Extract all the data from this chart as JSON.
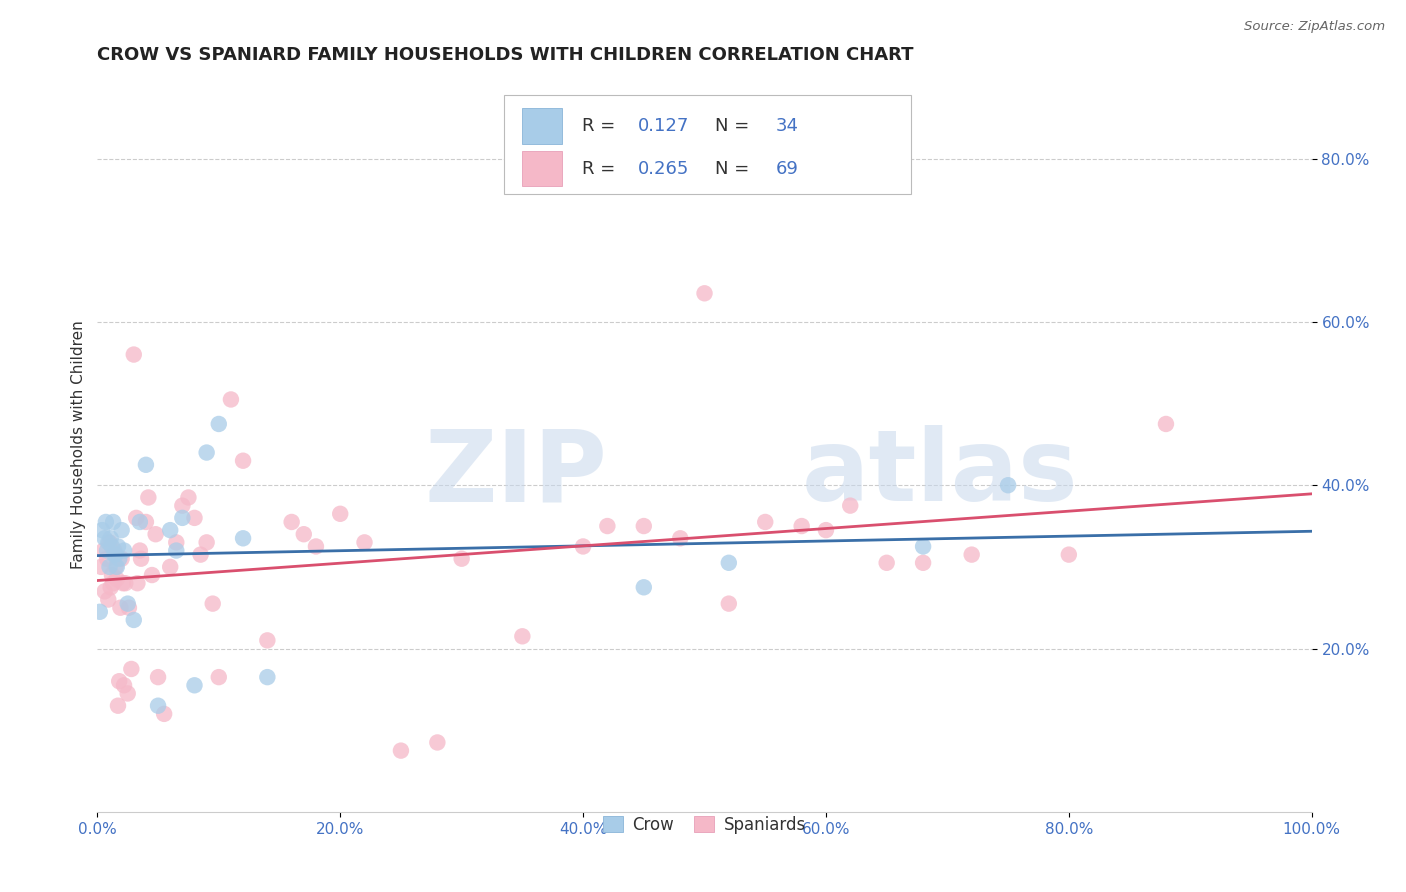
{
  "title": "CROW VS SPANIARD FAMILY HOUSEHOLDS WITH CHILDREN CORRELATION CHART",
  "source": "Source: ZipAtlas.com",
  "ylabel": "Family Households with Children",
  "xlim": [
    0.0,
    1.0
  ],
  "ylim": [
    0.0,
    0.9
  ],
  "xtick_labels": [
    "0.0%",
    "20.0%",
    "40.0%",
    "60.0%",
    "80.0%",
    "100.0%"
  ],
  "xtick_vals": [
    0.0,
    0.2,
    0.4,
    0.6,
    0.8,
    1.0
  ],
  "ytick_labels": [
    "20.0%",
    "40.0%",
    "60.0%",
    "80.0%"
  ],
  "ytick_vals": [
    0.2,
    0.4,
    0.6,
    0.8
  ],
  "crow_R": "0.127",
  "crow_N": "34",
  "spaniard_R": "0.265",
  "spaniard_N": "69",
  "crow_color": "#a8cce8",
  "spaniard_color": "#f5b8c8",
  "crow_line_color": "#3a6fa8",
  "spaniard_line_color": "#d94f6e",
  "crow_x": [
    0.002,
    0.004,
    0.006,
    0.007,
    0.008,
    0.009,
    0.01,
    0.011,
    0.012,
    0.013,
    0.014,
    0.015,
    0.016,
    0.017,
    0.018,
    0.02,
    0.022,
    0.025,
    0.03,
    0.035,
    0.04,
    0.05,
    0.06,
    0.065,
    0.07,
    0.08,
    0.09,
    0.1,
    0.12,
    0.14,
    0.45,
    0.52,
    0.68,
    0.75
  ],
  "crow_y": [
    0.245,
    0.345,
    0.335,
    0.355,
    0.32,
    0.33,
    0.3,
    0.335,
    0.325,
    0.355,
    0.315,
    0.315,
    0.3,
    0.325,
    0.31,
    0.345,
    0.32,
    0.255,
    0.235,
    0.355,
    0.425,
    0.13,
    0.345,
    0.32,
    0.36,
    0.155,
    0.44,
    0.475,
    0.335,
    0.165,
    0.275,
    0.305,
    0.325,
    0.4
  ],
  "spaniard_x": [
    0.003,
    0.005,
    0.006,
    0.008,
    0.009,
    0.01,
    0.011,
    0.012,
    0.013,
    0.014,
    0.015,
    0.016,
    0.017,
    0.018,
    0.019,
    0.02,
    0.021,
    0.022,
    0.023,
    0.025,
    0.026,
    0.028,
    0.03,
    0.032,
    0.033,
    0.035,
    0.036,
    0.04,
    0.042,
    0.045,
    0.048,
    0.05,
    0.055,
    0.06,
    0.065,
    0.07,
    0.075,
    0.08,
    0.085,
    0.09,
    0.095,
    0.1,
    0.11,
    0.12,
    0.14,
    0.16,
    0.17,
    0.18,
    0.2,
    0.22,
    0.25,
    0.28,
    0.3,
    0.35,
    0.4,
    0.42,
    0.45,
    0.48,
    0.5,
    0.52,
    0.55,
    0.58,
    0.6,
    0.62,
    0.65,
    0.68,
    0.72,
    0.8,
    0.88
  ],
  "spaniard_y": [
    0.3,
    0.32,
    0.27,
    0.31,
    0.26,
    0.33,
    0.275,
    0.29,
    0.28,
    0.32,
    0.3,
    0.285,
    0.13,
    0.16,
    0.25,
    0.31,
    0.28,
    0.155,
    0.28,
    0.145,
    0.25,
    0.175,
    0.56,
    0.36,
    0.28,
    0.32,
    0.31,
    0.355,
    0.385,
    0.29,
    0.34,
    0.165,
    0.12,
    0.3,
    0.33,
    0.375,
    0.385,
    0.36,
    0.315,
    0.33,
    0.255,
    0.165,
    0.505,
    0.43,
    0.21,
    0.355,
    0.34,
    0.325,
    0.365,
    0.33,
    0.075,
    0.085,
    0.31,
    0.215,
    0.325,
    0.35,
    0.35,
    0.335,
    0.635,
    0.255,
    0.355,
    0.35,
    0.345,
    0.375,
    0.305,
    0.305,
    0.315,
    0.315,
    0.475
  ],
  "watermark_top": "ZIP",
  "watermark_bot": "atlas",
  "background_color": "#ffffff",
  "grid_color": "#cccccc",
  "title_fontsize": 13,
  "axis_label_fontsize": 11,
  "tick_fontsize": 11,
  "tick_color": "#4472c4",
  "legend_text_color": "#4472c4"
}
